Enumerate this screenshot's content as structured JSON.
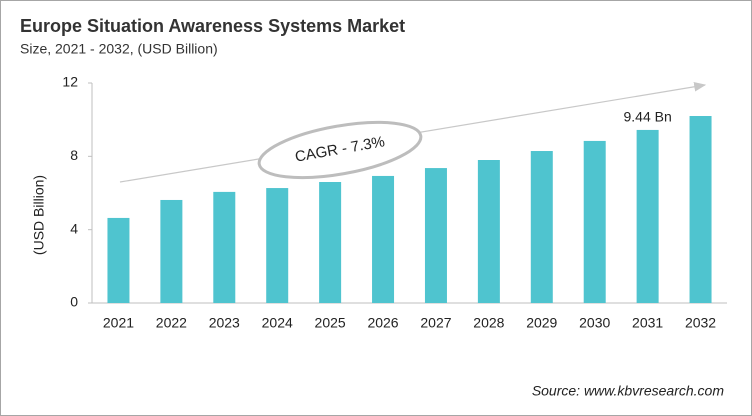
{
  "chart_data": {
    "type": "bar",
    "title": "Europe Situation Awareness Systems Market",
    "subtitle": "Size, 2021 - 2032, (USD Billion)",
    "y_label": "(USD Billion)",
    "categories": [
      "2021",
      "2022",
      "2023",
      "2024",
      "2025",
      "2026",
      "2027",
      "2028",
      "2029",
      "2030",
      "2031",
      "2032"
    ],
    "values": [
      4.64,
      5.62,
      6.06,
      6.27,
      6.6,
      6.93,
      7.36,
      7.8,
      8.29,
      8.84,
      9.44,
      10.2
    ],
    "value_labels": [
      null,
      null,
      null,
      null,
      null,
      null,
      null,
      null,
      null,
      null,
      "9.44 Bn",
      null
    ],
    "color": "#4fc4cf",
    "ylim": [
      0,
      12
    ],
    "yticks": [
      0,
      4,
      8,
      12
    ],
    "grid": false,
    "annotation": "CAGR - 7.3%",
    "source": "Source: www.kbvresearch.com"
  }
}
